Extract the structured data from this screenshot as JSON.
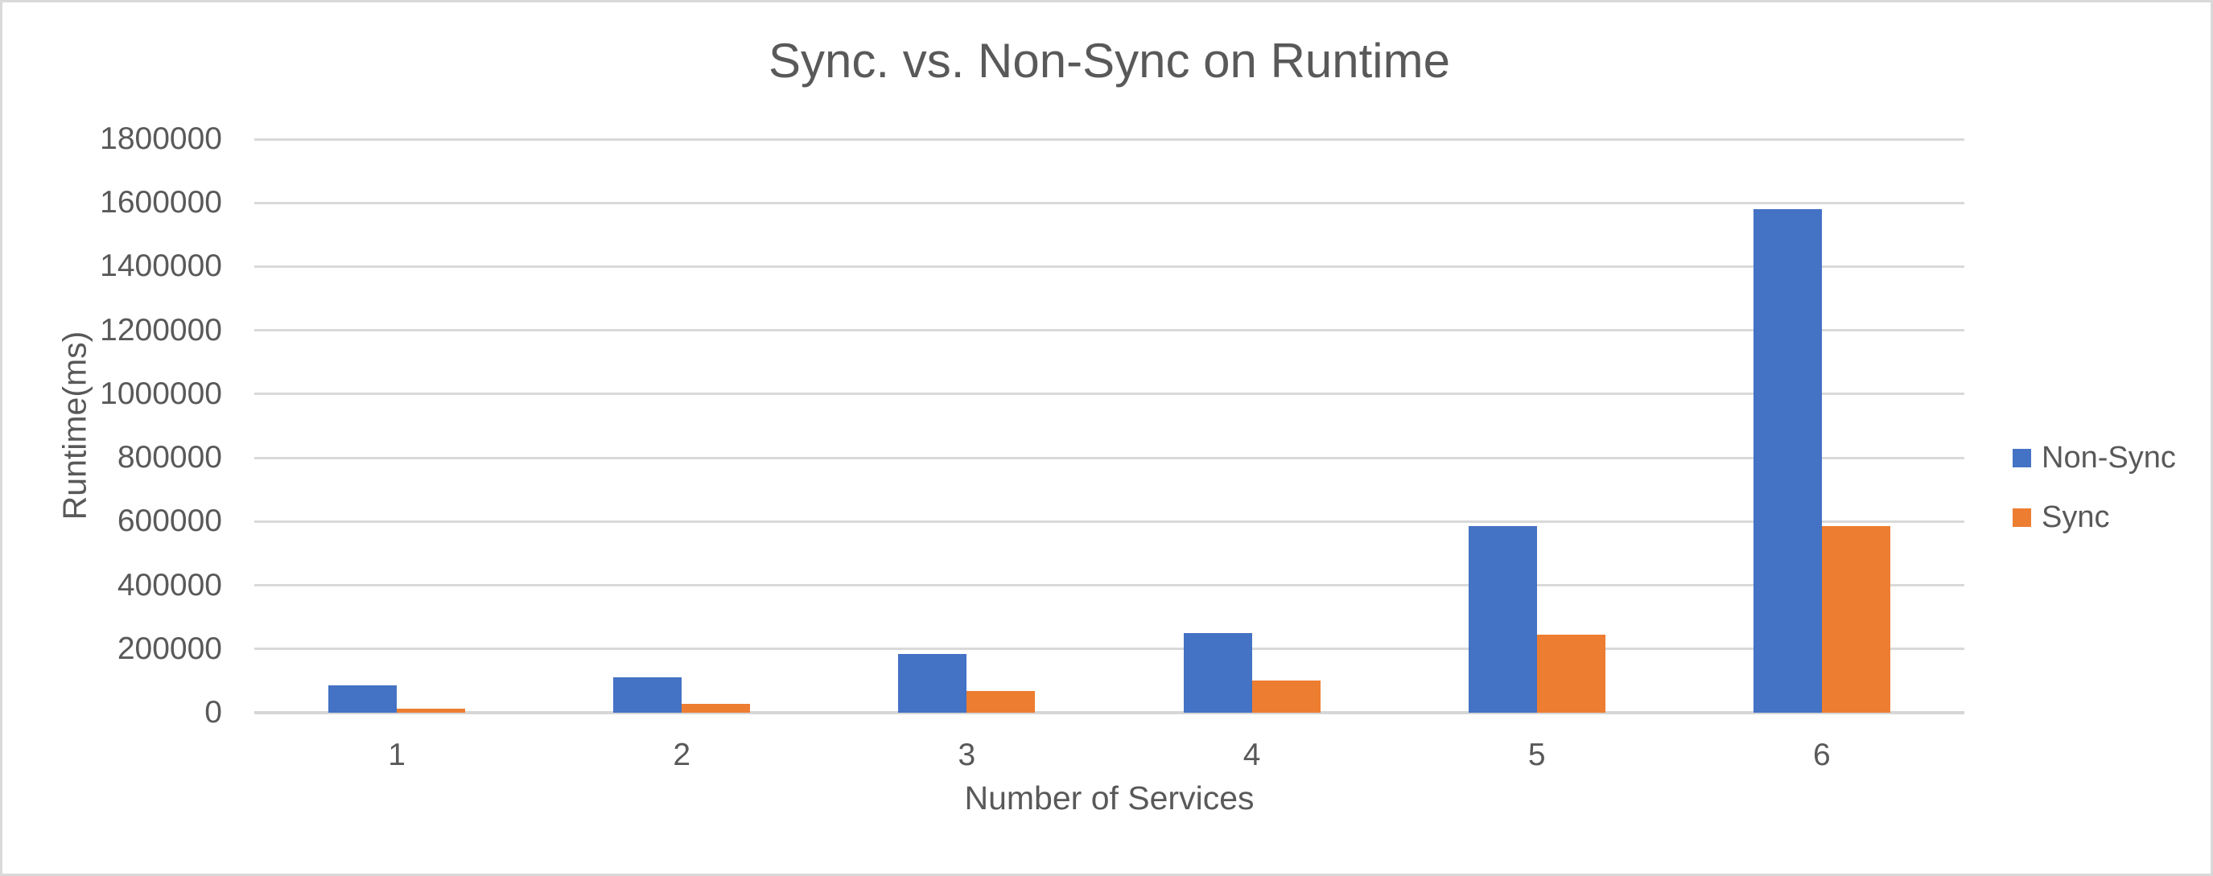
{
  "canvas": {
    "background_color": "#ffffff",
    "border_color": "#d9d9d9"
  },
  "chart_data": {
    "type": "bar",
    "title": "Sync. vs. Non-Sync on Runtime",
    "xlabel": "Number of Services",
    "ylabel": "Runtime(ms)",
    "categories": [
      "1",
      "2",
      "3",
      "4",
      "5",
      "6"
    ],
    "series": [
      {
        "name": "Non-Sync",
        "color": "#4472C4",
        "values": [
          85000,
          110000,
          185000,
          250000,
          585000,
          1580000
        ]
      },
      {
        "name": "Sync",
        "color": "#ED7D31",
        "values": [
          12000,
          27000,
          67000,
          100000,
          245000,
          585000
        ]
      }
    ],
    "ylim": [
      0,
      1800000
    ],
    "ytick_step": 200000,
    "yticks": [
      "1800000",
      "1600000",
      "1400000",
      "1200000",
      "1000000",
      "800000",
      "600000",
      "400000",
      "200000",
      "0"
    ],
    "grid": true,
    "legend_position": "right",
    "text_color": "#595959",
    "gridline_color": "#d9d9d9"
  }
}
